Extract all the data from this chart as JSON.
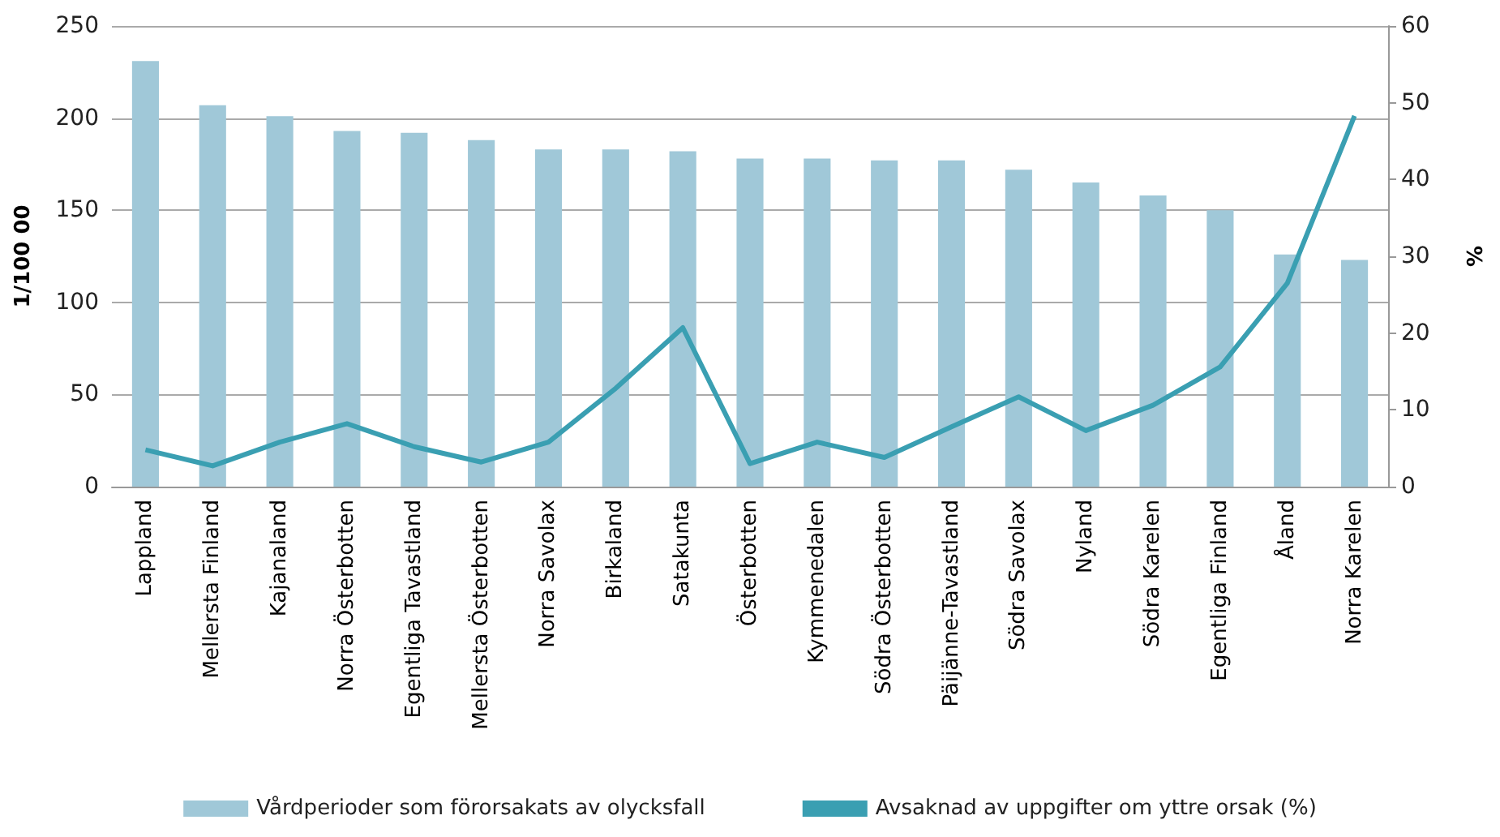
{
  "chart_data": {
    "type": "bar",
    "categories": [
      "Lappland",
      "Mellersta Finland",
      "Kajanaland",
      "Norra Österbotten",
      "Egentliga Tavastland",
      "Mellersta Österbotten",
      "Norra Savolax",
      "Birkaland",
      "Satakunta",
      "Österbotten",
      "Kymmenedalen",
      "Södra Österbotten",
      "Päijänne-Tavastland",
      "Södra Savolax",
      "Nyland",
      "Södra Karelen",
      "Egentliga Finland",
      "Åland",
      "Norra Karelen"
    ],
    "series": [
      {
        "name": "Vårdperioder som förorsakats av olycksfall",
        "color": "#a0c8d8",
        "values": [
          231,
          207,
          201,
          193,
          192,
          188,
          183,
          183,
          182,
          178,
          178,
          177,
          177,
          172,
          165,
          158,
          150,
          126,
          123
        ]
      },
      {
        "name": "Avsaknad av uppgifter om yttre orsak (%)",
        "type": "line",
        "axis": "y2",
        "color": "#3a9fb2",
        "values": [
          4.8,
          2.7,
          5.8,
          8.2,
          5.2,
          3.2,
          5.8,
          12.8,
          20.7,
          3.0,
          5.8,
          3.8,
          7.8,
          11.7,
          7.3,
          10.6,
          15.6,
          26.5,
          48.3
        ]
      }
    ],
    "ylabel": "1/100 00",
    "y2label": "%",
    "ylim": [
      0,
      250
    ],
    "yticks": [
      0,
      50,
      100,
      150,
      200,
      250
    ],
    "y2lim": [
      0,
      60
    ],
    "y2ticks": [
      0,
      10,
      20,
      30,
      40,
      50,
      60
    ],
    "grid": "y",
    "legend": "bottom",
    "marker": "none",
    "line_style": "solid"
  }
}
